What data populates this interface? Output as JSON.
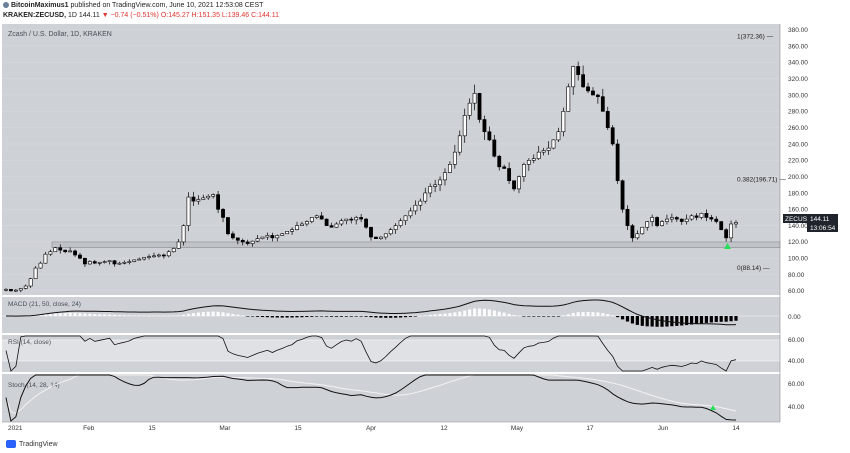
{
  "header": {
    "author": "BitcoinMaximus1",
    "published": "published on TradingView.com, June 10, 2021 12:53:08 CEST",
    "symbol": "KRAKEN:ZECUSD",
    "interval": "1D",
    "last": "144.11",
    "change": "−0.74 (−0.51%)",
    "ohlc": "O:145.27 H:151.35 L:139.46 C:144.11"
  },
  "chart_data": {
    "type": "candlestick",
    "title": "Zcash / U.S. Dollar, 1D, KRAKEN",
    "price_axis": {
      "ticks": [
        "380.00",
        "360.00",
        "340.00",
        "320.00",
        "300.00",
        "280.00",
        "260.00",
        "240.00",
        "220.00",
        "200.00",
        "180.00",
        "160.00",
        "140.00",
        "120.00",
        "100.00",
        "80.00",
        "60.00"
      ],
      "ylim": [
        55,
        387
      ]
    },
    "x_axis": {
      "ticks": [
        "2021",
        "Feb",
        "15",
        "Mar",
        "15",
        "Apr",
        "12",
        "May",
        "17",
        "Jun",
        "14"
      ]
    },
    "price_label": {
      "symbol": "ZECUSD",
      "price": "144.11",
      "countdown": "13:06:54"
    },
    "fib_levels": [
      {
        "label": "1(372.36)",
        "value": 372.36
      },
      {
        "label": "0.382(196.71)",
        "value": 196.71
      },
      {
        "label": "0(88.14)",
        "value": 88.14
      }
    ],
    "support_zone": [
      113,
      120
    ],
    "close_series": [
      62,
      60,
      61,
      63,
      66,
      75,
      88,
      94,
      105,
      108,
      113,
      110,
      108,
      109,
      104,
      100,
      93,
      96,
      94,
      95,
      96,
      97,
      93,
      94,
      95,
      96,
      98,
      99,
      101,
      102,
      103,
      104,
      103,
      108,
      112,
      120,
      140,
      175,
      170,
      172,
      174,
      176,
      178,
      160,
      150,
      130,
      125,
      122,
      120,
      118,
      121,
      124,
      126,
      128,
      125,
      128,
      130,
      133,
      135,
      140,
      142,
      145,
      150,
      152,
      148,
      140,
      138,
      142,
      146,
      148,
      147,
      150,
      148,
      138,
      126,
      124,
      126,
      130,
      135,
      140,
      146,
      152,
      158,
      165,
      170,
      180,
      188,
      190,
      196,
      205,
      215,
      230,
      250,
      275,
      290,
      302,
      270,
      255,
      245,
      225,
      212,
      210,
      195,
      185,
      200,
      215,
      220,
      222,
      230,
      232,
      235,
      245,
      255,
      280,
      310,
      335,
      325,
      310,
      305,
      300,
      298,
      280,
      260,
      240,
      195,
      160,
      140,
      125,
      130,
      138,
      145,
      150,
      140,
      145,
      148,
      150,
      148,
      145,
      148,
      152,
      150,
      155,
      150,
      148,
      145,
      135,
      125,
      142,
      144
    ],
    "panels": [
      {
        "name": "MACD (21, 50, close, 24)",
        "ticks": [
          "0.00"
        ]
      },
      {
        "name": "RSI (14, close)",
        "ticks": [
          "60.00",
          "40.00"
        ]
      },
      {
        "name": "Stoch (14, 28, 14)",
        "ticks": [
          "60.00",
          "40.00"
        ]
      }
    ]
  },
  "footer": {
    "brand": "TradingView"
  },
  "colors": {
    "bg": "#ced1d6",
    "up": "#ffffff",
    "down": "#000000",
    "grid": "#dcdfe3"
  }
}
